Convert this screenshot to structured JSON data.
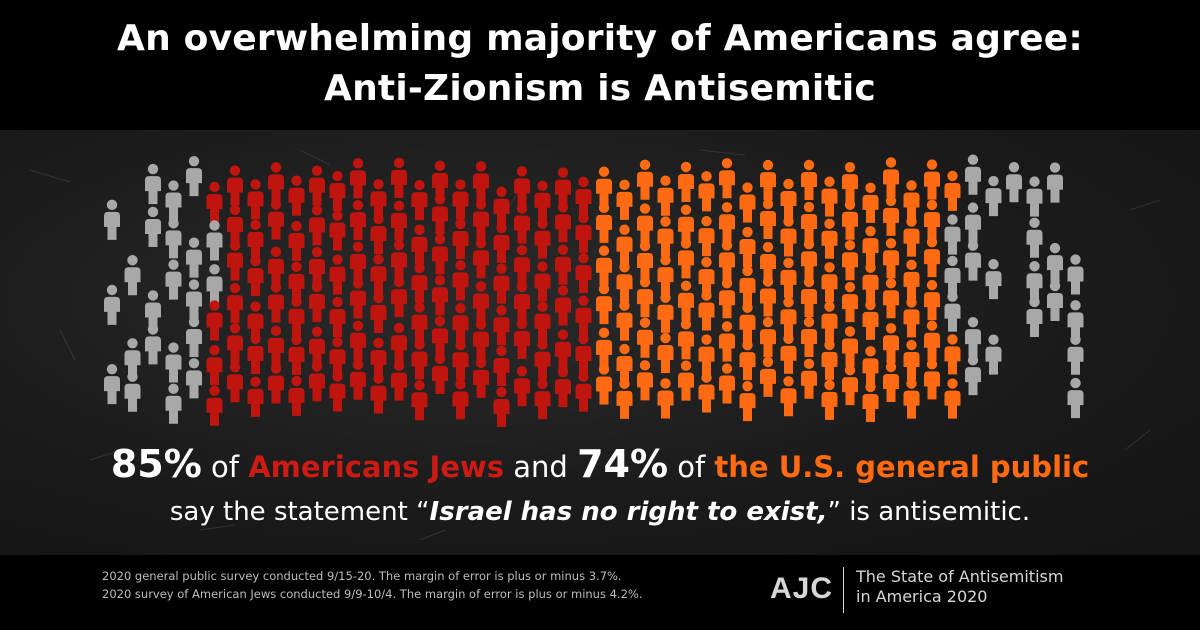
{
  "header": {
    "title_line1": "An overwhelming majority of Americans agree:",
    "title_line2": "Anti-Zionism is Antisemitic"
  },
  "colors": {
    "jews": "#c0140f",
    "general_public": "#ff6a12",
    "other": "#a8a8a8",
    "panel_bg": "#1b1b1b"
  },
  "stats": {
    "jews_pct": "85%",
    "of1": " of ",
    "jews_label": "Americans Jews",
    "and": " and ",
    "public_pct": "74%",
    "of2": " of ",
    "public_label": "the U.S. general public",
    "quote_prefix": "say the statement “",
    "quote_text": "Israel has no right to exist,",
    "quote_suffix": "” is antisemitic."
  },
  "footer": {
    "note1": "2020 general public survey conducted 9/15-20. The margin of error is plus or minus 3.7%.",
    "note2": "2020 survey of American Jews conducted 9/9-10/4. The margin of error is plus or minus 4.2%.",
    "logo": "AJC",
    "report_line1": "The State of Antisemitism",
    "report_line2": "in America 2020"
  }
}
